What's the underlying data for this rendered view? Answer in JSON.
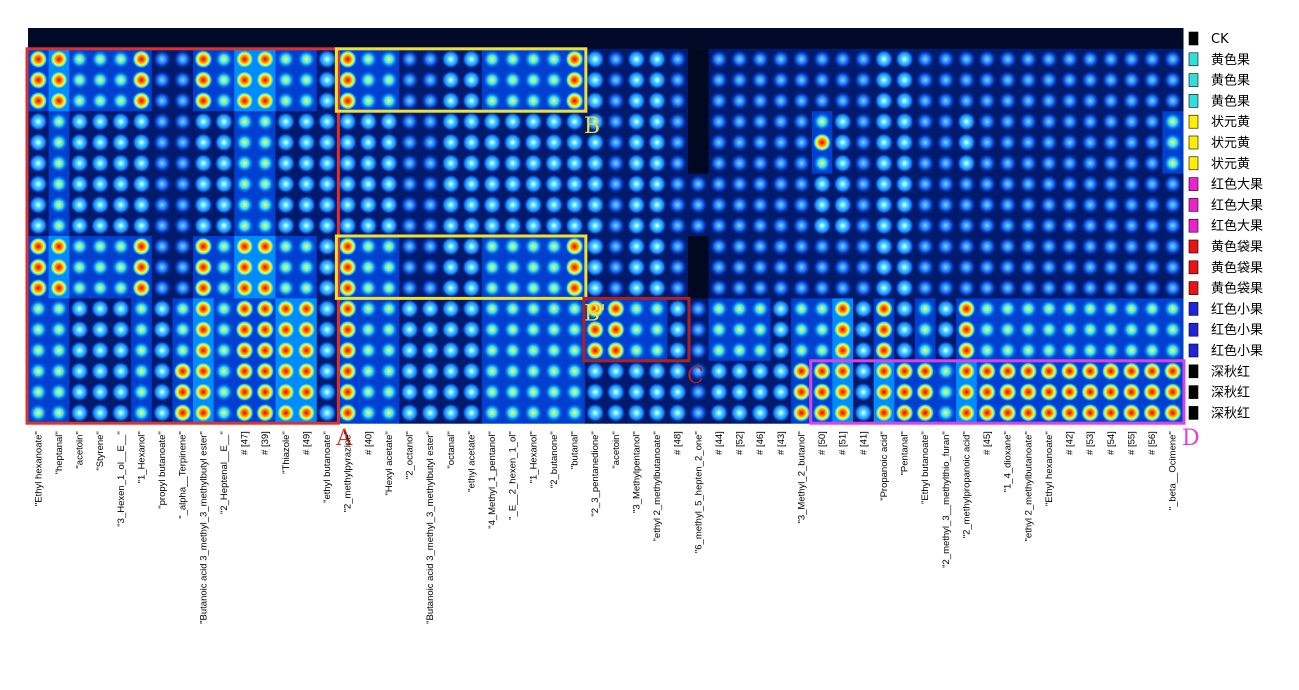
{
  "chart_data": {
    "type": "heatmap",
    "title": "",
    "xlabel": "",
    "ylabel": "",
    "rows": [
      "CK",
      "黄色果",
      "黄色果",
      "黄色果",
      "状元黄",
      "状元黄",
      "状元黄",
      "红色大果",
      "红色大果",
      "红色大果",
      "黄色袋果",
      "黄色袋果",
      "黄色袋果",
      "红色小果",
      "红色小果",
      "红色小果",
      "深秋红",
      "深秋红",
      "深秋红"
    ],
    "row_colors": [
      "#000000",
      "#33dddd",
      "#33dddd",
      "#33dddd",
      "#ffee00",
      "#ffee00",
      "#ffee00",
      "#ee22cc",
      "#ee22cc",
      "#ee22cc",
      "#ee1111",
      "#ee1111",
      "#ee1111",
      "#2222dd",
      "#2222dd",
      "#2222dd",
      "#000000",
      "#000000",
      "#000000"
    ],
    "columns": [
      "\"Ethyl hexanoate\"",
      "\"heptanal\"",
      "\"acetoin\"",
      "\"Styrene\"",
      "\"3_Hexen_1_ol__E__\"",
      "\"1_Hexanol\"",
      "\"propyl butanoate\"",
      "\"_alpha__Terpinene\"",
      "\"Butanoic acid 3_methyl_3_methylbutyl ester\"",
      "\"2_Heptenal__E__\"",
      "# [47]",
      "# [39]",
      "\"Thiazole\"",
      "# [49]",
      "\"ethyl butanoate\"",
      "\"2_methylpyrazine\"",
      "# [40]",
      "\"Hexyl acetate\"",
      "\"2_octanol\"",
      "\"Butanoic acid 3_methyl_3_methylbutyl ester\"",
      "\"octanal\"",
      "\"ethyl acetate\"",
      "\"4_Methyl_1_pentanol\"",
      "\"_E__2_hexen_1_ol\"",
      "\"1_Hexanol\"",
      "\"2_butanone\"",
      "\"butanal\"",
      "\"2_3_pentanedione\"",
      "\"acetoin\"",
      "\"3_Methylpentanol\"",
      "\"ethyl 2_methylbutanoate\"",
      "# [48]",
      "\"6_methyl_5_hepten_2_one\"",
      "# [44]",
      "# [52]",
      "# [46]",
      "# [43]",
      "\"3_Methyl_2_butanol\"",
      "# [50]",
      "# [51]",
      "# [41]",
      "\"Propanoic acid\"",
      "\"Pentanal\"",
      "\"Ethyl butanoate\"",
      "\"2_methyl_3__methylthio_furan\"",
      "\"2_methylpropanoic acid\"",
      "# [45]",
      "\"1_4_dioxane\"",
      "\"ethyl 2_methylbutanoate\"",
      "\"Ethyl hexanoate\"",
      "# [42]",
      "# [53]",
      "# [54]",
      "# [55]",
      "# [56]",
      "\"_beta__Ocimene\""
    ],
    "legend": "right",
    "colormap": [
      "#000822",
      "#001a6e",
      "#0040d0",
      "#008cff",
      "#29d7ff",
      "#ffff33",
      "#ff6600",
      "#dd0000"
    ],
    "cell_values": {
      "1": [
        0.8,
        0.9,
        0.7,
        0.6,
        0.7,
        0.8,
        0.3,
        0.3,
        0.8,
        0.7,
        0.9,
        0.9,
        0.7,
        0.7,
        0.5,
        0.8,
        0.7,
        0.6,
        0.3,
        0.2,
        0.5,
        0.4,
        0.6,
        0.6,
        0.7,
        0.7,
        0.8,
        0.4,
        0.3,
        0.4,
        0.4,
        0.3,
        0.1,
        0.3,
        0.3,
        0.3,
        0.3,
        0.2,
        0.3,
        0.3,
        0.3,
        0.5,
        0.4,
        0.3,
        0.3,
        0.3,
        0.2,
        0.2,
        0.2,
        0.2,
        0.2,
        0.2,
        0.3,
        0.3,
        0.3,
        0.2
      ],
      "2": [
        0.8,
        0.9,
        0.7,
        0.6,
        0.7,
        0.8,
        0.3,
        0.3,
        0.8,
        0.7,
        0.9,
        0.9,
        0.7,
        0.7,
        0.5,
        0.8,
        0.7,
        0.6,
        0.3,
        0.2,
        0.5,
        0.4,
        0.6,
        0.6,
        0.7,
        0.7,
        0.8,
        0.4,
        0.3,
        0.4,
        0.4,
        0.3,
        0.1,
        0.3,
        0.3,
        0.3,
        0.3,
        0.2,
        0.3,
        0.3,
        0.3,
        0.5,
        0.4,
        0.3,
        0.3,
        0.3,
        0.2,
        0.2,
        0.2,
        0.2,
        0.2,
        0.2,
        0.3,
        0.3,
        0.3,
        0.2
      ],
      "3": [
        0.8,
        0.9,
        0.7,
        0.6,
        0.7,
        0.8,
        0.3,
        0.3,
        0.8,
        0.7,
        0.9,
        0.9,
        0.7,
        0.7,
        0.5,
        0.8,
        0.7,
        0.6,
        0.3,
        0.2,
        0.5,
        0.4,
        0.6,
        0.6,
        0.7,
        0.7,
        0.8,
        0.4,
        0.3,
        0.4,
        0.4,
        0.3,
        0.1,
        0.3,
        0.3,
        0.3,
        0.3,
        0.2,
        0.3,
        0.3,
        0.3,
        0.5,
        0.4,
        0.3,
        0.3,
        0.3,
        0.2,
        0.2,
        0.2,
        0.2,
        0.2,
        0.2,
        0.3,
        0.3,
        0.3,
        0.2
      ],
      "4": [
        0.5,
        0.6,
        0.5,
        0.5,
        0.5,
        0.5,
        0.3,
        0.3,
        0.5,
        0.5,
        0.6,
        0.6,
        0.5,
        0.5,
        0.4,
        0.5,
        0.5,
        0.4,
        0.3,
        0.2,
        0.4,
        0.4,
        0.4,
        0.4,
        0.5,
        0.5,
        0.5,
        0.4,
        0.3,
        0.4,
        0.4,
        0.3,
        0.1,
        0.3,
        0.3,
        0.3,
        0.3,
        0.2,
        0.7,
        0.4,
        0.3,
        0.5,
        0.4,
        0.3,
        0.3,
        0.5,
        0.2,
        0.2,
        0.2,
        0.2,
        0.2,
        0.2,
        0.3,
        0.3,
        0.3,
        0.6
      ],
      "5": [
        0.5,
        0.6,
        0.5,
        0.5,
        0.5,
        0.5,
        0.3,
        0.3,
        0.5,
        0.5,
        0.6,
        0.6,
        0.5,
        0.5,
        0.4,
        0.5,
        0.5,
        0.4,
        0.3,
        0.2,
        0.4,
        0.4,
        0.4,
        0.4,
        0.5,
        0.5,
        0.5,
        0.4,
        0.3,
        0.4,
        0.4,
        0.3,
        0.1,
        0.3,
        0.3,
        0.3,
        0.3,
        0.2,
        0.8,
        0.4,
        0.3,
        0.5,
        0.4,
        0.3,
        0.3,
        0.5,
        0.2,
        0.2,
        0.2,
        0.2,
        0.2,
        0.2,
        0.3,
        0.3,
        0.3,
        0.6
      ],
      "6": [
        0.5,
        0.6,
        0.5,
        0.5,
        0.5,
        0.5,
        0.3,
        0.3,
        0.5,
        0.5,
        0.6,
        0.6,
        0.5,
        0.5,
        0.4,
        0.5,
        0.5,
        0.4,
        0.3,
        0.2,
        0.4,
        0.4,
        0.4,
        0.4,
        0.5,
        0.5,
        0.5,
        0.4,
        0.3,
        0.4,
        0.4,
        0.3,
        0.1,
        0.3,
        0.3,
        0.3,
        0.3,
        0.2,
        0.7,
        0.4,
        0.3,
        0.5,
        0.4,
        0.3,
        0.3,
        0.5,
        0.2,
        0.2,
        0.2,
        0.2,
        0.2,
        0.2,
        0.3,
        0.3,
        0.3,
        0.6
      ],
      "7": [
        0.5,
        0.6,
        0.5,
        0.5,
        0.5,
        0.5,
        0.3,
        0.3,
        0.5,
        0.5,
        0.6,
        0.6,
        0.5,
        0.5,
        0.4,
        0.5,
        0.5,
        0.4,
        0.3,
        0.2,
        0.4,
        0.4,
        0.4,
        0.4,
        0.5,
        0.5,
        0.5,
        0.4,
        0.3,
        0.4,
        0.4,
        0.3,
        0.3,
        0.3,
        0.3,
        0.3,
        0.3,
        0.2,
        0.4,
        0.4,
        0.3,
        0.5,
        0.4,
        0.3,
        0.3,
        0.3,
        0.2,
        0.2,
        0.2,
        0.2,
        0.2,
        0.2,
        0.3,
        0.3,
        0.3,
        0.3
      ],
      "8": [
        0.5,
        0.6,
        0.5,
        0.5,
        0.5,
        0.5,
        0.3,
        0.3,
        0.5,
        0.5,
        0.6,
        0.6,
        0.5,
        0.5,
        0.4,
        0.5,
        0.5,
        0.4,
        0.3,
        0.2,
        0.4,
        0.4,
        0.4,
        0.4,
        0.5,
        0.5,
        0.5,
        0.4,
        0.3,
        0.4,
        0.4,
        0.3,
        0.3,
        0.3,
        0.3,
        0.3,
        0.3,
        0.2,
        0.4,
        0.4,
        0.3,
        0.5,
        0.4,
        0.3,
        0.3,
        0.3,
        0.2,
        0.2,
        0.2,
        0.2,
        0.2,
        0.2,
        0.3,
        0.3,
        0.3,
        0.3
      ],
      "9": [
        0.5,
        0.6,
        0.5,
        0.5,
        0.5,
        0.5,
        0.3,
        0.3,
        0.5,
        0.5,
        0.6,
        0.6,
        0.5,
        0.5,
        0.4,
        0.5,
        0.5,
        0.4,
        0.3,
        0.2,
        0.4,
        0.4,
        0.4,
        0.4,
        0.5,
        0.5,
        0.5,
        0.4,
        0.3,
        0.4,
        0.4,
        0.3,
        0.3,
        0.3,
        0.3,
        0.3,
        0.3,
        0.2,
        0.4,
        0.4,
        0.3,
        0.5,
        0.4,
        0.3,
        0.3,
        0.3,
        0.2,
        0.2,
        0.2,
        0.2,
        0.2,
        0.2,
        0.3,
        0.3,
        0.3,
        0.3
      ],
      "10": [
        0.8,
        0.9,
        0.7,
        0.6,
        0.7,
        0.8,
        0.3,
        0.3,
        0.8,
        0.7,
        0.9,
        0.9,
        0.7,
        0.7,
        0.5,
        0.8,
        0.7,
        0.6,
        0.3,
        0.2,
        0.5,
        0.4,
        0.6,
        0.6,
        0.7,
        0.7,
        0.8,
        0.4,
        0.3,
        0.4,
        0.4,
        0.3,
        0.1,
        0.3,
        0.3,
        0.3,
        0.3,
        0.2,
        0.3,
        0.3,
        0.3,
        0.5,
        0.4,
        0.3,
        0.3,
        0.3,
        0.2,
        0.2,
        0.2,
        0.2,
        0.2,
        0.2,
        0.3,
        0.3,
        0.3,
        0.2
      ],
      "11": [
        0.8,
        0.9,
        0.7,
        0.6,
        0.7,
        0.8,
        0.3,
        0.3,
        0.8,
        0.7,
        0.9,
        0.9,
        0.7,
        0.7,
        0.5,
        0.8,
        0.7,
        0.6,
        0.3,
        0.2,
        0.5,
        0.4,
        0.6,
        0.6,
        0.7,
        0.7,
        0.8,
        0.4,
        0.3,
        0.4,
        0.4,
        0.3,
        0.1,
        0.3,
        0.3,
        0.3,
        0.3,
        0.2,
        0.3,
        0.3,
        0.3,
        0.5,
        0.4,
        0.3,
        0.3,
        0.3,
        0.2,
        0.2,
        0.2,
        0.2,
        0.2,
        0.2,
        0.3,
        0.3,
        0.3,
        0.2
      ],
      "12": [
        0.8,
        0.9,
        0.7,
        0.6,
        0.7,
        0.8,
        0.3,
        0.3,
        0.8,
        0.7,
        0.9,
        0.9,
        0.7,
        0.7,
        0.5,
        0.8,
        0.7,
        0.6,
        0.3,
        0.2,
        0.5,
        0.4,
        0.6,
        0.6,
        0.7,
        0.7,
        0.8,
        0.4,
        0.3,
        0.4,
        0.4,
        0.3,
        0.1,
        0.3,
        0.3,
        0.3,
        0.3,
        0.2,
        0.3,
        0.3,
        0.3,
        0.5,
        0.4,
        0.3,
        0.3,
        0.3,
        0.2,
        0.2,
        0.2,
        0.2,
        0.2,
        0.2,
        0.3,
        0.3,
        0.3,
        0.2
      ],
      "13": [
        0.6,
        0.7,
        0.5,
        0.5,
        0.5,
        0.6,
        0.4,
        0.7,
        0.9,
        0.7,
        0.8,
        0.8,
        0.9,
        0.9,
        0.5,
        0.8,
        0.6,
        0.7,
        0.5,
        0.4,
        0.5,
        0.5,
        0.7,
        0.7,
        0.7,
        0.6,
        0.6,
        0.85,
        0.8,
        0.7,
        0.7,
        0.5,
        0.2,
        0.6,
        0.6,
        0.6,
        0.5,
        0.7,
        0.7,
        0.9,
        0.4,
        0.8,
        0.5,
        0.6,
        0.4,
        0.8,
        0.6,
        0.6,
        0.6,
        0.6,
        0.6,
        0.6,
        0.6,
        0.6,
        0.6,
        0.6
      ],
      "14": [
        0.6,
        0.7,
        0.5,
        0.5,
        0.5,
        0.6,
        0.4,
        0.7,
        0.9,
        0.7,
        0.8,
        0.8,
        0.9,
        0.9,
        0.5,
        0.8,
        0.6,
        0.7,
        0.5,
        0.4,
        0.5,
        0.5,
        0.7,
        0.7,
        0.7,
        0.6,
        0.6,
        0.85,
        0.8,
        0.7,
        0.7,
        0.5,
        0.2,
        0.6,
        0.6,
        0.6,
        0.5,
        0.7,
        0.7,
        0.9,
        0.4,
        0.8,
        0.5,
        0.6,
        0.4,
        0.8,
        0.6,
        0.6,
        0.6,
        0.6,
        0.6,
        0.6,
        0.6,
        0.6,
        0.6,
        0.6
      ],
      "15": [
        0.6,
        0.7,
        0.5,
        0.5,
        0.5,
        0.6,
        0.4,
        0.7,
        0.9,
        0.7,
        0.8,
        0.8,
        0.9,
        0.9,
        0.5,
        0.8,
        0.6,
        0.7,
        0.5,
        0.4,
        0.5,
        0.5,
        0.7,
        0.7,
        0.7,
        0.6,
        0.6,
        0.85,
        0.8,
        0.7,
        0.7,
        0.5,
        0.2,
        0.6,
        0.6,
        0.6,
        0.5,
        0.7,
        0.7,
        0.9,
        0.4,
        0.8,
        0.5,
        0.6,
        0.4,
        0.8,
        0.6,
        0.6,
        0.6,
        0.6,
        0.6,
        0.6,
        0.6,
        0.6,
        0.6,
        0.6
      ],
      "16": [
        0.6,
        0.7,
        0.5,
        0.5,
        0.5,
        0.6,
        0.4,
        0.8,
        0.9,
        0.7,
        0.8,
        0.8,
        0.9,
        0.9,
        0.5,
        0.8,
        0.6,
        0.7,
        0.5,
        0.4,
        0.5,
        0.5,
        0.7,
        0.7,
        0.7,
        0.6,
        0.6,
        0.5,
        0.5,
        0.5,
        0.5,
        0.4,
        0.2,
        0.4,
        0.4,
        0.4,
        0.4,
        0.8,
        0.8,
        0.9,
        0.5,
        0.95,
        0.85,
        0.85,
        0.6,
        0.9,
        0.8,
        0.85,
        0.85,
        0.8,
        0.85,
        0.85,
        0.8,
        0.85,
        0.8,
        0.85
      ],
      "17": [
        0.6,
        0.7,
        0.5,
        0.5,
        0.5,
        0.6,
        0.4,
        0.8,
        0.9,
        0.7,
        0.8,
        0.8,
        0.9,
        0.9,
        0.5,
        0.8,
        0.6,
        0.7,
        0.5,
        0.4,
        0.5,
        0.5,
        0.7,
        0.7,
        0.7,
        0.6,
        0.6,
        0.5,
        0.5,
        0.5,
        0.5,
        0.4,
        0.2,
        0.4,
        0.4,
        0.4,
        0.4,
        0.8,
        0.8,
        0.9,
        0.5,
        0.95,
        0.85,
        0.85,
        0.6,
        0.9,
        0.8,
        0.85,
        0.85,
        0.8,
        0.85,
        0.85,
        0.8,
        0.85,
        0.8,
        0.85
      ],
      "18": [
        0.6,
        0.7,
        0.5,
        0.5,
        0.5,
        0.6,
        0.4,
        0.8,
        0.9,
        0.7,
        0.8,
        0.8,
        0.9,
        0.9,
        0.5,
        0.8,
        0.6,
        0.7,
        0.5,
        0.4,
        0.5,
        0.5,
        0.7,
        0.7,
        0.7,
        0.6,
        0.6,
        0.5,
        0.5,
        0.5,
        0.5,
        0.4,
        0.2,
        0.4,
        0.4,
        0.4,
        0.4,
        0.8,
        0.8,
        0.9,
        0.5,
        0.95,
        0.85,
        0.85,
        0.6,
        0.9,
        0.8,
        0.85,
        0.85,
        0.8,
        0.85,
        0.85,
        0.8,
        0.85,
        0.8,
        0.85
      ]
    },
    "cell_values_row0": "CK baseline (dark, near-zero)",
    "highlight_boxes": [
      {
        "label": "A",
        "color": "#e0302a",
        "columns": [
          "\"Ethyl hexanoate\"",
          "\"ethyl butanoate\""
        ],
        "rows": [
          "黄色果",
          "深秋红"
        ]
      },
      {
        "label": "B",
        "color": "#f0e030",
        "columns": [
          "\"2_methylpyrazine\"",
          "\"butanal\""
        ],
        "rows": [
          "黄色果",
          "黄色果"
        ]
      },
      {
        "label": "B'",
        "color": "#f0e030",
        "columns": [
          "\"2_methylpyrazine\"",
          "\"butanal\""
        ],
        "rows": [
          "黄色袋果",
          "黄色袋果"
        ]
      },
      {
        "label": "C",
        "color": "#b02020",
        "columns": [
          "\"2_3_pentanedione\"",
          "# [48]"
        ],
        "rows": [
          "红色小果",
          "红色小果"
        ]
      },
      {
        "label": "D",
        "color": "#e040e0",
        "columns": [
          "# [50]",
          "\"_beta__Ocimene\""
        ],
        "rows": [
          "深秋红",
          "深秋红"
        ]
      }
    ]
  }
}
